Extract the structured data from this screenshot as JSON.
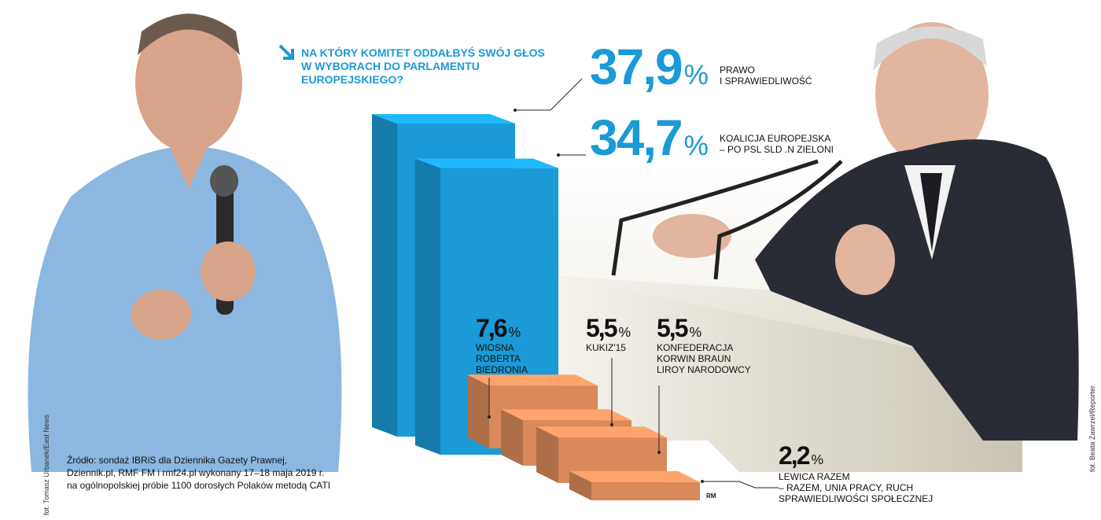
{
  "chart_data": {
    "type": "bar",
    "title": "NA KTÓRY KOMITET ODDAŁBYŚ SWÓJ GŁOS\nW WYBORACH DO PARLAMENTU\nEUROPEJSKIEGO?",
    "categories": [
      "PRAWO\nI SPRAWIEDLIWOŚĆ",
      "KOALICJA EUROPEJSKA\n– PO PSL SLD .N ZIELONI",
      "WIOSNA\nROBERTA\nBIEDRONIA",
      "KUKIZ'15",
      "KONFEDERACJA\nKORWIN BRAUN\nLIROY NARODOWCY",
      "LEWICA RAZEM\n– RAZEM, UNIA PRACY, RUCH\nSPRAWIEDLIWOŚCI SPOŁECZNEJ"
    ],
    "values": [
      37.9,
      34.7,
      7.6,
      5.5,
      5.5,
      2.2
    ],
    "value_labels": [
      "37,9",
      "34,7",
      "7,6",
      "5,5",
      "5,5",
      "2,2"
    ],
    "value_unit": "%",
    "colors": [
      "#1a9ad6",
      "#1a9ad6",
      "#d9895a",
      "#d9895a",
      "#d9895a",
      "#d9895a"
    ],
    "source": "Źródło: sondaż IBRiS dla Dziennika Gazety Prawnej,\nDziennik.pl, RMF FM i rmf24.pl wykonany 17–18 maja 2019 r.\nna ogólnopolskiej próbie 1100 dorosłych Polaków metodą CATI",
    "author": "RM",
    "photo_credits": [
      "fot. Tomasz Urbanek/East News",
      "fot. Beata Zawrzel/Reporter"
    ]
  }
}
